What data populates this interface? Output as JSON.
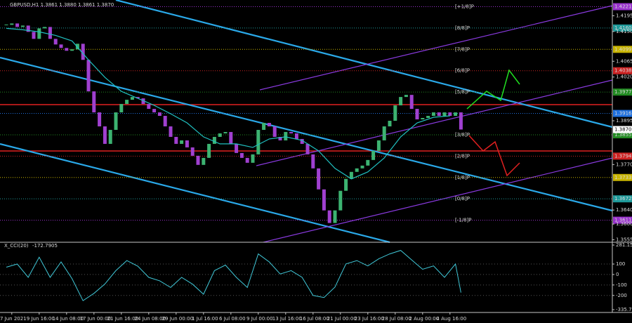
{
  "chart_data": [
    {
      "type": "candlestick",
      "title": "GBPUSD,H1 1.3861 1.3880 1.3861 1.3870",
      "categories": [
        null,
        "7 Jun 2021",
        null,
        null,
        null,
        null,
        "9 Jun 16:00",
        null,
        null,
        null,
        null,
        "14 Jun 08:00",
        null,
        null,
        null,
        null,
        "17 Jun 00:00",
        null,
        null,
        null,
        null,
        "21 Jun 16:00",
        null,
        null,
        null,
        null,
        "24 Jun 08:00",
        null,
        null,
        null,
        null,
        "29 Jun 00:00",
        null,
        null,
        null,
        null,
        "1 Jul 16:00",
        null,
        null,
        null,
        null,
        "6 Jul 08:00",
        null,
        null,
        null,
        null,
        "9 Jul 00:00",
        null,
        null,
        null,
        null,
        "13 Jul 16:00",
        null,
        null,
        null,
        null,
        "16 Jul 08:00",
        null,
        null,
        null,
        null,
        "21 Jul 00:00",
        null,
        null,
        null,
        null,
        "23 Jul 16:00",
        null,
        null,
        null,
        null,
        "28 Jul 08:00",
        null,
        null,
        null,
        null,
        "2 Aug 00:00",
        null,
        null,
        null,
        null,
        "4 Aug 16:00",
        null,
        null
      ],
      "close": [
        1.4169,
        1.4173,
        1.4163,
        1.4167,
        1.4149,
        1.4129,
        1.4159,
        1.4163,
        1.4129,
        1.4113,
        1.4103,
        1.4095,
        1.4099,
        1.4115,
        1.4069,
        1.3979,
        1.3919,
        1.3879,
        1.3829,
        1.3869,
        1.3919,
        1.3943,
        1.3955,
        1.3963,
        1.3959,
        1.3943,
        1.3929,
        1.3919,
        1.3909,
        1.3879,
        1.3849,
        1.3829,
        1.3839,
        1.3819,
        1.3795,
        1.3769,
        1.3789,
        1.3829,
        1.3849,
        1.3859,
        1.3863,
        1.3829,
        1.3803,
        1.3789,
        1.3775,
        1.3799,
        1.3869,
        1.3889,
        1.3879,
        1.3849,
        1.3839,
        1.3863,
        1.3859,
        1.3843,
        1.3829,
        1.3799,
        1.3759,
        1.3699,
        1.3639,
        1.3603,
        1.3639,
        1.3695,
        1.3729,
        1.3749,
        1.3759,
        1.3767,
        1.3783,
        1.3809,
        1.3839,
        1.3879,
        1.3895,
        1.3939,
        1.3963,
        1.3969,
        1.3929,
        1.3899,
        1.3903,
        1.3909,
        1.3919,
        1.3909,
        1.3919,
        1.3909,
        1.3919,
        1.387
      ],
      "bull_color": "#3cb371",
      "bear_color": "#a040d0",
      "ylim": [
        1.3548,
        1.423
      ],
      "yticks": [
        1.4195,
        {
          "value": 1.415,
          "label": "1.4150"
        },
        1.4065,
        {
          "value": 1.402,
          "label": "1.4020"
        },
        1.3895,
        {
          "value": 1.377,
          "label": "1.3770"
        },
        {
          "value": 1.364,
          "label": "1.3640"
        },
        {
          "value": 1.36,
          "label": "1.3600"
        },
        1.3555
      ],
      "current_price": {
        "value": 1.387,
        "label": "1.3870"
      },
      "ma": {
        "color": "#20c0c0",
        "x": [
          0,
          3,
          6,
          9,
          12,
          15,
          18,
          21,
          24,
          27,
          30,
          33,
          36,
          39,
          42,
          45,
          48,
          51,
          54,
          57,
          60,
          63,
          66,
          69,
          72,
          75,
          78,
          81
        ],
        "values": [
          1.4159,
          1.4155,
          1.4149,
          1.4139,
          1.4123,
          1.4069,
          1.4019,
          1.3979,
          1.3959,
          1.3939,
          1.3915,
          1.3889,
          1.3849,
          1.3829,
          1.3829,
          1.3819,
          1.3843,
          1.3849,
          1.3839,
          1.3809,
          1.3759,
          1.3729,
          1.3749,
          1.3789,
          1.3849,
          1.3889,
          1.3905,
          1.3909
        ]
      },
      "murray": [
        {
          "name": "[+1/8]P",
          "color": "#9932cc",
          "level": 1.4221
        },
        {
          "name": "[8/8]P",
          "color": "#1f9a9a",
          "level": {
            "value": 1.416,
            "label": "1.4160"
          }
        },
        {
          "name": "[7/8]P",
          "color": "#c8b400",
          "level": 1.4099
        },
        {
          "name": "[6/8]P",
          "color": "#cc2222",
          "level": 1.4038
        },
        {
          "name": "[5/8]P",
          "color": "#228b22",
          "level": 1.3977
        },
        {
          "color": "#1e70e0",
          "level": 1.3916
        },
        {
          "name": "[3/8]P",
          "color": "#228b22",
          "level": 1.3855
        },
        {
          "name": "[2/8]P",
          "color": "#cc2222",
          "level": 1.3794
        },
        {
          "name": "[1/8]P",
          "color": "#c8b400",
          "level": 1.3733
        },
        {
          "name": "[0/8]P",
          "color": "#1f9a9a",
          "level": 1.3672
        },
        {
          "name": "[-1/8]P",
          "color": "#9932cc",
          "level": 1.3611
        }
      ]
    },
    {
      "type": "line",
      "title": "X_CCI(20)",
      "color": "#40c8d8",
      "ylim": [
        -335.714,
        281.153
      ],
      "yticks": [
        281.153,
        100,
        0,
        -100,
        -200,
        -335.714
      ],
      "x": [
        0,
        2,
        4,
        6,
        8,
        10,
        12,
        14,
        16,
        18,
        20,
        22,
        24,
        26,
        28,
        30,
        32,
        34,
        36,
        38,
        40,
        42,
        44,
        46,
        48,
        50,
        52,
        54,
        56,
        58,
        60,
        62,
        64,
        66,
        68,
        70,
        72,
        74,
        76,
        78,
        80,
        82,
        83
      ],
      "values": [
        70,
        100,
        -27,
        165,
        -27,
        120,
        -40,
        -250,
        -180,
        -90,
        37,
        133,
        80,
        -27,
        -60,
        -124,
        -27,
        -92,
        -188,
        37,
        90,
        -27,
        -124,
        197,
        120,
        5,
        37,
        -27,
        -200,
        -220,
        -120,
        101,
        133,
        82,
        150,
        197,
        230,
        140,
        50,
        82,
        -27,
        101,
        -172.7905
      ]
    }
  ]
}
